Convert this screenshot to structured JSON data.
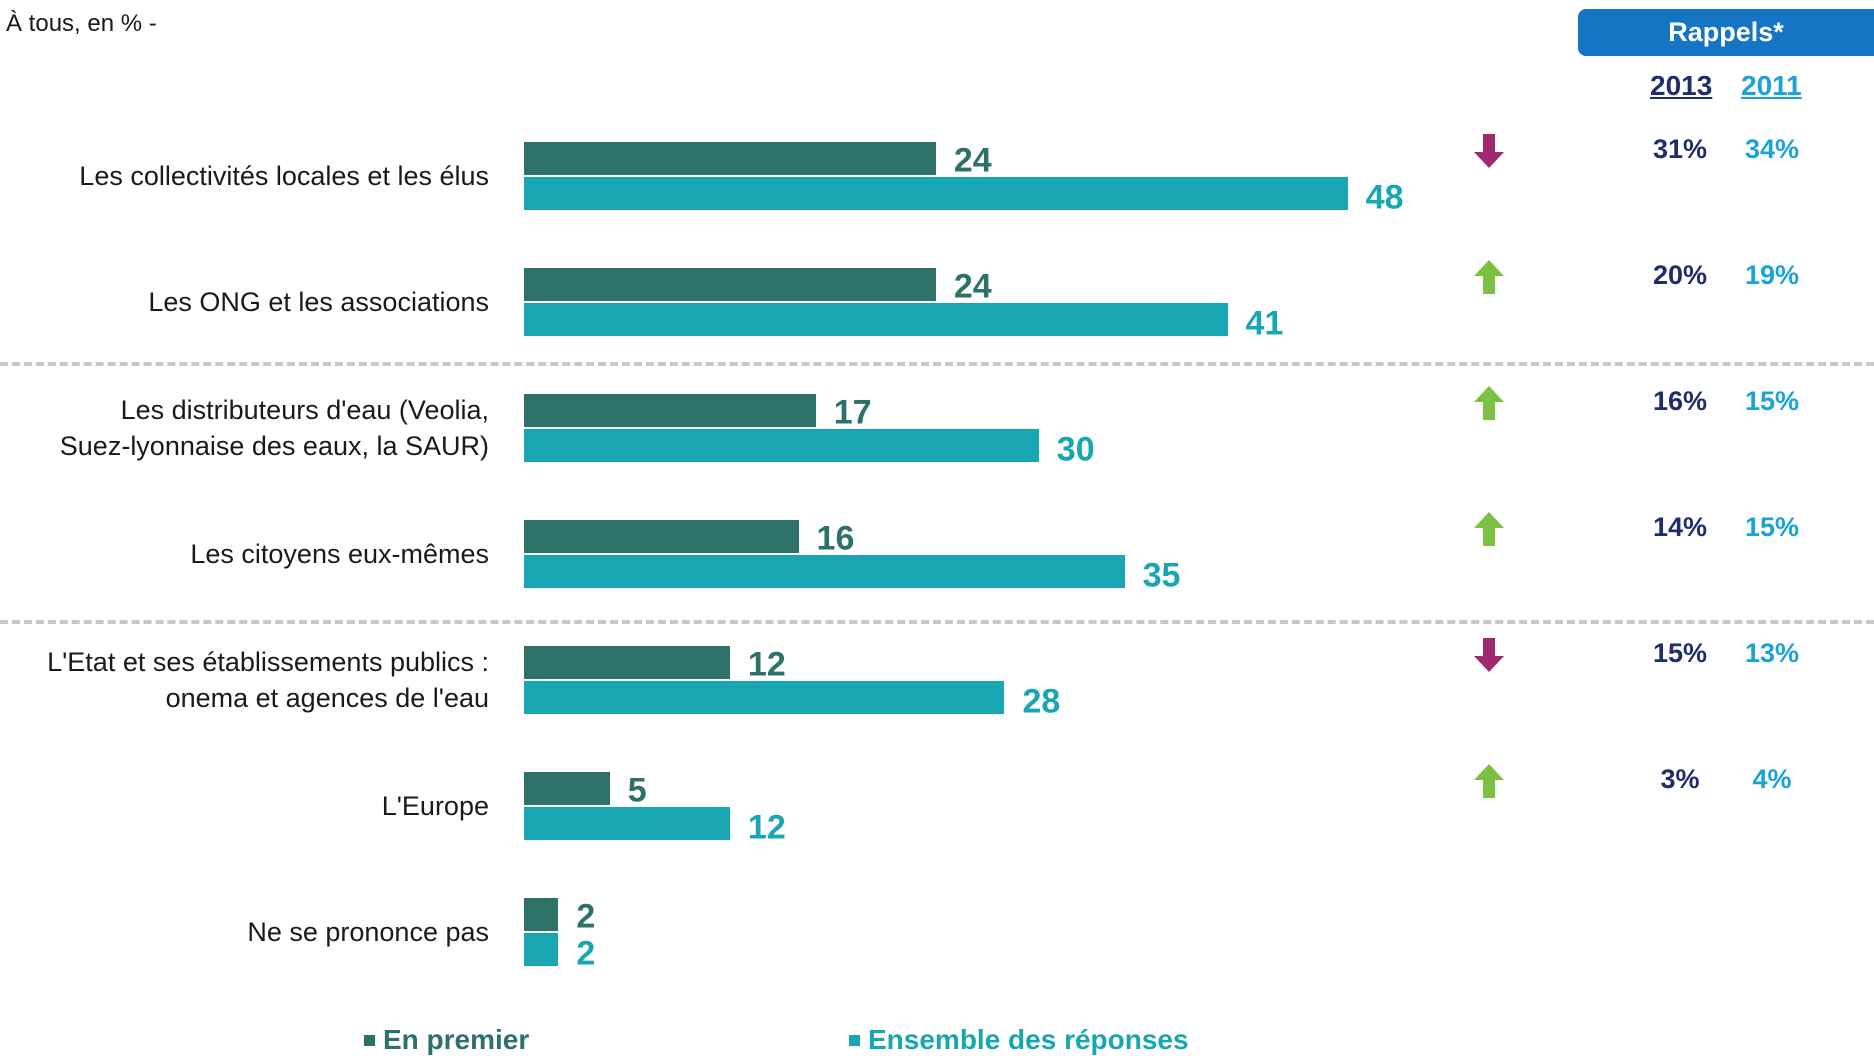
{
  "subtitle": "À tous, en % -",
  "rappels": {
    "label": "Rappels*",
    "year_a": "2013",
    "year_b": "2011"
  },
  "colors": {
    "first": "#2e7169",
    "all": "#18a6b3",
    "up": "#7dc143",
    "down": "#a0286e"
  },
  "chart_data": {
    "type": "bar",
    "orientation": "horizontal",
    "categories": [
      "Les collectivités locales et les élus",
      "Les ONG et les associations",
      "Les distributeurs d'eau (Veolia, Suez-lyonnaise des eaux, la SAUR)",
      "Les citoyens eux-mêmes",
      "L'Etat et ses établissements publics : onema et agences de l'eau",
      "L'Europe",
      "Ne se prononce pas"
    ],
    "category_lines": [
      [
        "Les collectivités locales et les élus"
      ],
      [
        "Les ONG et les associations"
      ],
      [
        "Les distributeurs d'eau (Veolia,",
        "Suez-lyonnaise des eaux, la SAUR)"
      ],
      [
        "Les citoyens eux-mêmes"
      ],
      [
        "L'Etat et ses établissements publics :",
        "onema et agences de l'eau"
      ],
      [
        "L'Europe"
      ],
      [
        "Ne se prononce pas"
      ]
    ],
    "series": [
      {
        "name": "En premier",
        "values": [
          24,
          24,
          17,
          16,
          12,
          5,
          2
        ]
      },
      {
        "name": "Ensemble des réponses",
        "values": [
          48,
          41,
          30,
          35,
          28,
          12,
          2
        ]
      }
    ],
    "xlim": [
      0,
      100
    ],
    "grid": false,
    "legend": "bottom"
  },
  "recalls": [
    {
      "trend": "down",
      "y2013": "31%",
      "y2011": "34%"
    },
    {
      "trend": "up",
      "y2013": "20%",
      "y2011": "19%"
    },
    {
      "trend": "up",
      "y2013": "16%",
      "y2011": "15%"
    },
    {
      "trend": "up",
      "y2013": "14%",
      "y2011": "15%"
    },
    {
      "trend": "down",
      "y2013": "15%",
      "y2011": "13%"
    },
    {
      "trend": "up",
      "y2013": "3%",
      "y2011": "4%"
    },
    null
  ],
  "legend": {
    "first": "En premier",
    "all": "Ensemble des réponses"
  }
}
